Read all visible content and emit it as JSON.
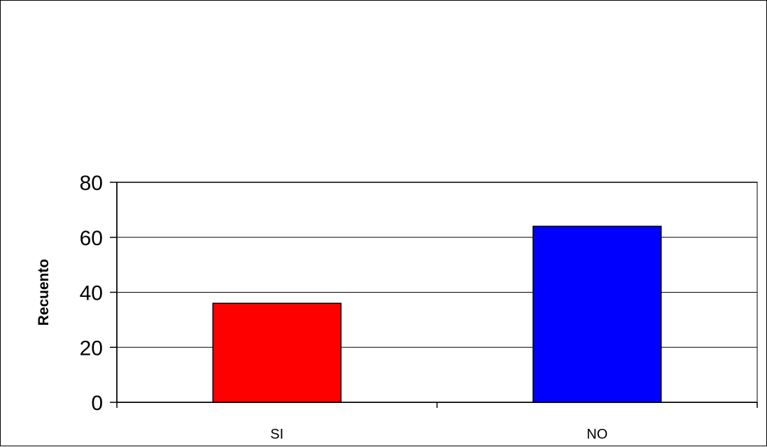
{
  "chart_data": {
    "type": "bar",
    "categories": [
      "SI",
      "NO"
    ],
    "values": [
      36,
      64
    ],
    "colors": [
      "#ff0000",
      "#0000ff"
    ],
    "title": "",
    "xlabel": "",
    "ylabel": "Recuento",
    "ylim": [
      0,
      80
    ],
    "yticks": [
      0,
      20,
      40,
      60,
      80
    ],
    "grid": true,
    "legend": "none"
  }
}
